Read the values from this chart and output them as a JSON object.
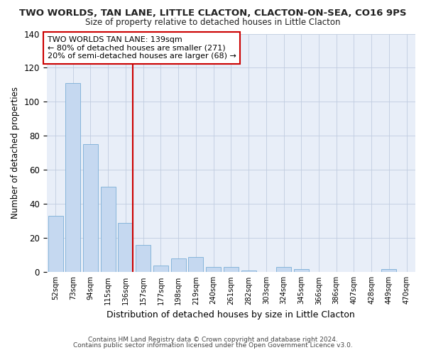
{
  "title": "TWO WORLDS, TAN LANE, LITTLE CLACTON, CLACTON-ON-SEA, CO16 9PS",
  "subtitle": "Size of property relative to detached houses in Little Clacton",
  "xlabel": "Distribution of detached houses by size in Little Clacton",
  "ylabel": "Number of detached properties",
  "categories": [
    "52sqm",
    "73sqm",
    "94sqm",
    "115sqm",
    "136sqm",
    "157sqm",
    "177sqm",
    "198sqm",
    "219sqm",
    "240sqm",
    "261sqm",
    "282sqm",
    "303sqm",
    "324sqm",
    "345sqm",
    "366sqm",
    "386sqm",
    "407sqm",
    "428sqm",
    "449sqm",
    "470sqm"
  ],
  "values": [
    33,
    111,
    75,
    50,
    29,
    16,
    4,
    8,
    9,
    3,
    3,
    1,
    0,
    3,
    2,
    0,
    0,
    0,
    0,
    2,
    0
  ],
  "bar_color": "#c5d8f0",
  "bar_edge_color": "#7aaed6",
  "marker_line_index": 4,
  "marker_label": "TWO WORLDS TAN LANE: 139sqm",
  "annotation_line1": "← 80% of detached houses are smaller (271)",
  "annotation_line2": "20% of semi-detached houses are larger (68) →",
  "marker_color": "#cc0000",
  "ylim": [
    0,
    140
  ],
  "yticks": [
    0,
    20,
    40,
    60,
    80,
    100,
    120,
    140
  ],
  "footnote1": "Contains HM Land Registry data © Crown copyright and database right 2024.",
  "footnote2": "Contains public sector information licensed under the Open Government Licence v3.0.",
  "bg_color": "#ffffff",
  "plot_bg_color": "#e8eef8",
  "grid_color": "#c0cce0"
}
